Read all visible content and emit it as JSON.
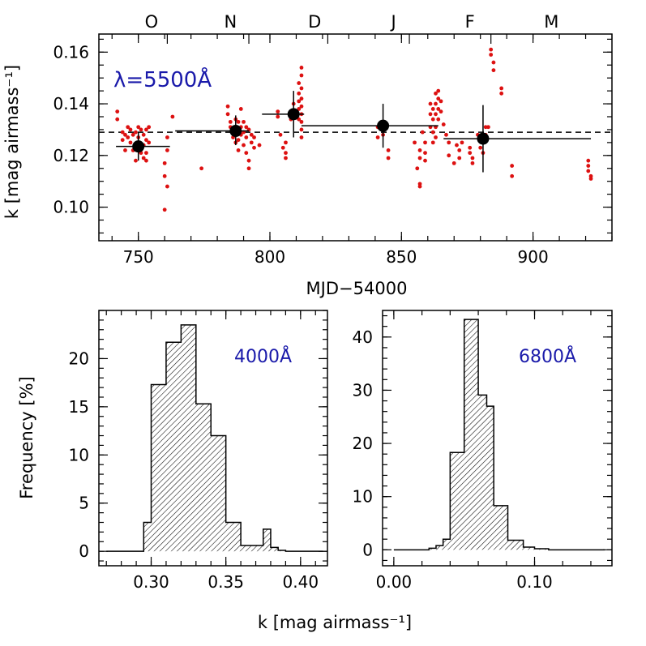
{
  "colors": {
    "points": "#dd1111",
    "bins": "#000000",
    "lambda_label": "#1a1aaa",
    "axes": "#000000"
  },
  "chart_data": [
    {
      "type": "scatter",
      "id": "top",
      "xlabel": "MJD−54000",
      "ylabel": "k [mag airmass⁻¹]",
      "xlim": [
        735,
        930
      ],
      "ylim": [
        0.087,
        0.167
      ],
      "xticks": [
        750,
        800,
        850,
        900
      ],
      "xtick_labels": [
        "750",
        "800",
        "850",
        "900"
      ],
      "yticks": [
        0.1,
        0.12,
        0.14,
        0.16
      ],
      "ytick_labels": [
        "0.10",
        "0.12",
        "0.14",
        "0.16"
      ],
      "annotation": "λ=5500Å",
      "month_labels": [
        {
          "label": "O",
          "x": 755
        },
        {
          "label": "N",
          "x": 785
        },
        {
          "label": "D",
          "x": 817
        },
        {
          "label": "J",
          "x": 847
        },
        {
          "label": "F",
          "x": 876
        },
        {
          "label": "M",
          "x": 907
        }
      ],
      "month_boundaries": [
        761,
        792,
        822,
        853,
        884
      ],
      "reference_level": 0.129,
      "monthly_means": [
        {
          "x": 750,
          "y": 0.1235,
          "xerr": [
            741.5,
            762
          ],
          "yerr": [
            0.118,
            0.129
          ]
        },
        {
          "x": 787,
          "y": 0.1295,
          "xerr": [
            764,
            792
          ],
          "yerr": [
            0.124,
            0.1355
          ]
        },
        {
          "x": 809,
          "y": 0.136,
          "xerr": [
            797,
            813
          ],
          "yerr": [
            0.127,
            0.145
          ]
        },
        {
          "x": 843,
          "y": 0.1315,
          "xerr": [
            812,
            864
          ],
          "yerr": [
            0.123,
            0.14
          ]
        },
        {
          "x": 881,
          "y": 0.1265,
          "xerr": [
            866,
            922
          ],
          "yerr": [
            0.1135,
            0.1395
          ]
        }
      ],
      "nightly_points": [
        [
          742,
          0.137
        ],
        [
          742,
          0.134
        ],
        [
          744,
          0.129
        ],
        [
          744,
          0.126
        ],
        [
          745,
          0.122
        ],
        [
          745,
          0.128
        ],
        [
          746,
          0.131
        ],
        [
          746,
          0.127
        ],
        [
          747,
          0.13
        ],
        [
          747,
          0.125
        ],
        [
          748,
          0.128
        ],
        [
          748,
          0.122
        ],
        [
          749,
          0.129
        ],
        [
          749,
          0.124
        ],
        [
          749,
          0.118
        ],
        [
          750,
          0.127
        ],
        [
          750,
          0.131
        ],
        [
          751,
          0.13
        ],
        [
          751,
          0.121
        ],
        [
          752,
          0.128
        ],
        [
          752,
          0.124
        ],
        [
          752,
          0.119
        ],
        [
          753,
          0.13
        ],
        [
          753,
          0.126
        ],
        [
          753,
          0.121
        ],
        [
          753,
          0.118
        ],
        [
          754,
          0.131
        ],
        [
          754,
          0.125
        ],
        [
          761,
          0.127
        ],
        [
          761,
          0.122
        ],
        [
          760,
          0.117
        ],
        [
          760,
          0.112
        ],
        [
          761,
          0.108
        ],
        [
          760,
          0.099
        ],
        [
          763,
          0.135
        ],
        [
          774,
          0.115
        ],
        [
          784,
          0.139
        ],
        [
          784,
          0.136
        ],
        [
          785,
          0.133
        ],
        [
          785,
          0.131
        ],
        [
          786,
          0.13
        ],
        [
          786,
          0.127
        ],
        [
          787,
          0.134
        ],
        [
          787,
          0.128
        ],
        [
          787,
          0.125
        ],
        [
          788,
          0.133
        ],
        [
          788,
          0.13
        ],
        [
          788,
          0.126
        ],
        [
          788,
          0.122
        ],
        [
          789,
          0.138
        ],
        [
          789,
          0.131
        ],
        [
          789,
          0.128
        ],
        [
          790,
          0.133
        ],
        [
          790,
          0.129
        ],
        [
          790,
          0.124
        ],
        [
          791,
          0.131
        ],
        [
          791,
          0.127
        ],
        [
          791,
          0.121
        ],
        [
          792,
          0.13
        ],
        [
          792,
          0.118
        ],
        [
          792,
          0.115
        ],
        [
          793,
          0.128
        ],
        [
          793,
          0.125
        ],
        [
          794,
          0.127
        ],
        [
          794,
          0.123
        ],
        [
          796,
          0.124
        ],
        [
          803,
          0.137
        ],
        [
          803,
          0.135
        ],
        [
          804,
          0.128
        ],
        [
          805,
          0.123
        ],
        [
          806,
          0.125
        ],
        [
          806,
          0.121
        ],
        [
          806,
          0.119
        ],
        [
          808,
          0.134
        ],
        [
          809,
          0.14
        ],
        [
          810,
          0.137
        ],
        [
          811,
          0.148
        ],
        [
          811,
          0.144
        ],
        [
          811,
          0.141
        ],
        [
          811,
          0.138
        ],
        [
          811,
          0.134
        ],
        [
          812,
          0.154
        ],
        [
          812,
          0.151
        ],
        [
          812,
          0.146
        ],
        [
          812,
          0.142
        ],
        [
          812,
          0.139
        ],
        [
          812,
          0.136
        ],
        [
          812,
          0.133
        ],
        [
          812,
          0.13
        ],
        [
          812,
          0.127
        ],
        [
          841,
          0.131
        ],
        [
          841,
          0.127
        ],
        [
          843,
          0.128
        ],
        [
          845,
          0.122
        ],
        [
          845,
          0.119
        ],
        [
          856,
          0.115
        ],
        [
          857,
          0.109
        ],
        [
          857,
          0.108
        ],
        [
          855,
          0.125
        ],
        [
          857,
          0.122
        ],
        [
          857,
          0.119
        ],
        [
          858,
          0.129
        ],
        [
          859,
          0.125
        ],
        [
          859,
          0.121
        ],
        [
          859,
          0.118
        ],
        [
          861,
          0.14
        ],
        [
          861,
          0.136
        ],
        [
          861,
          0.131
        ],
        [
          862,
          0.138
        ],
        [
          862,
          0.134
        ],
        [
          862,
          0.129
        ],
        [
          862,
          0.125
        ],
        [
          863,
          0.144
        ],
        [
          863,
          0.14
        ],
        [
          863,
          0.136
        ],
        [
          863,
          0.131
        ],
        [
          863,
          0.127
        ],
        [
          864,
          0.145
        ],
        [
          864,
          0.142
        ],
        [
          864,
          0.138
        ],
        [
          864,
          0.134
        ],
        [
          865,
          0.141
        ],
        [
          865,
          0.137
        ],
        [
          866,
          0.132
        ],
        [
          867,
          0.128
        ],
        [
          868,
          0.125
        ],
        [
          868,
          0.12
        ],
        [
          870,
          0.117
        ],
        [
          871,
          0.124
        ],
        [
          872,
          0.122
        ],
        [
          872,
          0.119
        ],
        [
          873,
          0.125
        ],
        [
          876,
          0.123
        ],
        [
          876,
          0.121
        ],
        [
          877,
          0.119
        ],
        [
          877,
          0.117
        ],
        [
          879,
          0.128
        ],
        [
          880,
          0.126
        ],
        [
          880,
          0.123
        ],
        [
          881,
          0.121
        ],
        [
          882,
          0.131
        ],
        [
          882,
          0.128
        ],
        [
          883,
          0.131
        ],
        [
          884,
          0.161
        ],
        [
          884,
          0.159
        ],
        [
          885,
          0.156
        ],
        [
          885,
          0.153
        ],
        [
          888,
          0.146
        ],
        [
          888,
          0.144
        ],
        [
          892,
          0.116
        ],
        [
          892,
          0.112
        ],
        [
          921,
          0.118
        ],
        [
          921,
          0.116
        ],
        [
          921,
          0.114
        ],
        [
          922,
          0.112
        ],
        [
          922,
          0.111
        ]
      ]
    },
    {
      "type": "histogram",
      "id": "hist-4000",
      "annotation": "4000Å",
      "xlabel": "",
      "ylabel": "Frequency [%]",
      "xlim": [
        0.265,
        0.418
      ],
      "ylim": [
        -1.5,
        25
      ],
      "xticks": [
        0.3,
        0.35,
        0.4
      ],
      "xtick_labels": [
        "0.30",
        "0.35",
        "0.40"
      ],
      "yticks": [
        0,
        5,
        10,
        15,
        20
      ],
      "ytick_labels": [
        "0",
        "5",
        "10",
        "15",
        "20"
      ],
      "bin_edges": [
        0.27,
        0.295,
        0.3,
        0.31,
        0.32,
        0.33,
        0.34,
        0.35,
        0.36,
        0.37,
        0.375,
        0.38,
        0.385,
        0.39,
        0.415
      ],
      "values": [
        0,
        3.0,
        17.3,
        21.7,
        23.5,
        15.3,
        12.0,
        3.0,
        0.6,
        0.6,
        2.3,
        0.4,
        0.1,
        0
      ]
    },
    {
      "type": "histogram",
      "id": "hist-6800",
      "annotation": "6800Å",
      "xlabel": "",
      "ylabel": "",
      "xlim": [
        -0.008,
        0.155
      ],
      "ylim": [
        -3.0,
        45
      ],
      "xticks": [
        0.0,
        0.1
      ],
      "xtick_labels": [
        "0.00",
        "0.10"
      ],
      "yticks": [
        0,
        10,
        20,
        30,
        40
      ],
      "ytick_labels": [
        "0",
        "10",
        "20",
        "30",
        "40"
      ],
      "bin_edges": [
        0.0,
        0.025,
        0.03,
        0.035,
        0.04,
        0.05,
        0.06,
        0.066,
        0.071,
        0.081,
        0.092,
        0.1,
        0.11,
        0.15
      ],
      "values": [
        0,
        0.3,
        0.8,
        2.0,
        18.3,
        43.3,
        29.1,
        27.0,
        8.3,
        1.8,
        0.5,
        0.2,
        0
      ]
    }
  ],
  "shared_xlabel": "k [mag airmass⁻¹]"
}
